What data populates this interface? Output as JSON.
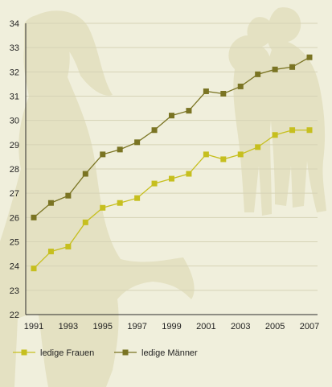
{
  "chart_data": {
    "type": "line",
    "title": "",
    "xlabel": "",
    "ylabel": "",
    "x": [
      1991,
      1992,
      1993,
      1994,
      1995,
      1996,
      1997,
      1998,
      1999,
      2000,
      2001,
      2002,
      2003,
      2004,
      2005,
      2006,
      2007
    ],
    "x_tick_labels": [
      "1991",
      "1993",
      "1995",
      "1997",
      "1999",
      "2001",
      "2003",
      "2005",
      "2007"
    ],
    "y_tick_labels": [
      "22",
      "23",
      "24",
      "25",
      "26",
      "27",
      "28",
      "29",
      "30",
      "31",
      "32",
      "33",
      "34"
    ],
    "ylim": [
      22,
      34
    ],
    "grid": "horizontal",
    "legend_position": "bottom-left",
    "series": [
      {
        "name": "ledige Frauen",
        "color": "#c6bf1f",
        "values": [
          23.9,
          24.6,
          24.8,
          25.8,
          26.4,
          26.6,
          26.8,
          27.4,
          27.6,
          27.8,
          28.6,
          28.4,
          28.6,
          28.9,
          29.4,
          29.6,
          29.6
        ]
      },
      {
        "name": "ledige Männer",
        "color": "#7a7423",
        "values": [
          26.0,
          26.6,
          26.9,
          27.8,
          28.6,
          28.8,
          29.1,
          29.6,
          30.2,
          30.4,
          31.2,
          31.1,
          31.4,
          31.9,
          32.1,
          32.2,
          32.6
        ]
      }
    ]
  },
  "background": {
    "color": "#f0efdc",
    "silhouette_color": "#e4e1c2"
  }
}
